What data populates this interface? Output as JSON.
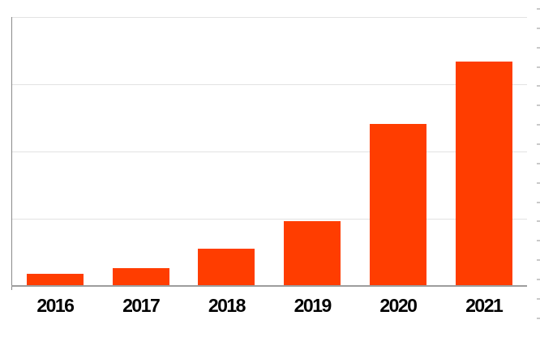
{
  "chart_data": {
    "type": "bar",
    "title": "",
    "xlabel": "",
    "ylabel": "",
    "categories": [
      "2016",
      "2017",
      "2018",
      "2019",
      "2020",
      "2021"
    ],
    "values": [
      18,
      26,
      56,
      96,
      241,
      334
    ],
    "ylim": [
      0,
      400
    ],
    "gridline_step": 100,
    "grid": "horizontal",
    "legend_position": "none",
    "y_tick_labels_visible": false,
    "right_edge_minor_ticks": true
  },
  "colors": {
    "bar": "#ff3d00",
    "gridline": "#e2e2e2",
    "y_axis_line": "#8a8a8a",
    "x_axis_line": "#9d9d9d",
    "minor_tick": "#c9c9c9",
    "label_text": "#000000",
    "background": "#ffffff"
  }
}
